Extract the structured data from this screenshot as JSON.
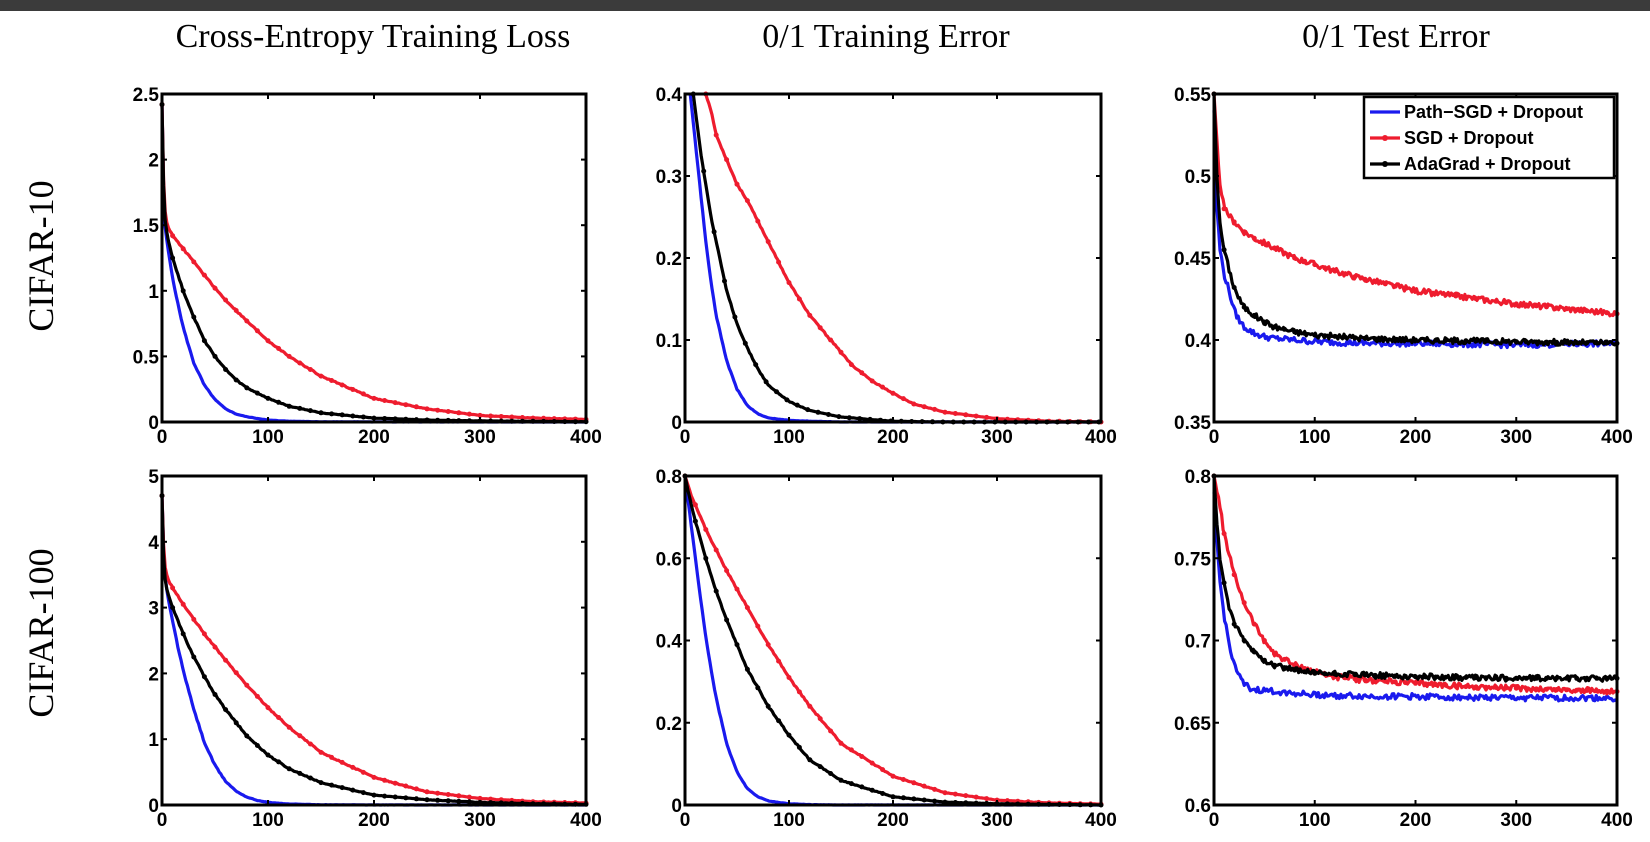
{
  "figure": {
    "col_titles": [
      "Cross-Entropy Training Loss",
      "0/1 Training Error",
      "0/1 Test Error"
    ],
    "row_labels": [
      "CIFAR-10",
      "CIFAR-100"
    ]
  },
  "legend": {
    "items": [
      {
        "label": "Path−SGD + Dropout",
        "color": "#1a1aee",
        "marker": "none"
      },
      {
        "label": "SGD + Dropout",
        "color": "#ee1c2e",
        "marker": "dot"
      },
      {
        "label": "AdaGrad + Dropout",
        "color": "#000000",
        "marker": "dot"
      }
    ]
  },
  "colors": {
    "path_sgd": "#1a1aee",
    "sgd": "#ee1c2e",
    "adagrad": "#000000"
  },
  "chart_data": [
    {
      "type": "line",
      "row": "CIFAR-10",
      "title": "Cross-Entropy Training Loss",
      "xlim": [
        0,
        400
      ],
      "ylim": [
        0,
        2.5
      ],
      "xticks": [
        0,
        100,
        200,
        300,
        400
      ],
      "xtick_labels": [
        "0",
        "100",
        "200",
        "300",
        "400"
      ],
      "yticks": [
        0,
        0.5,
        1,
        1.5,
        2,
        2.5
      ],
      "ytick_labels": [
        "0",
        "0.5",
        "1",
        "1.5",
        "2",
        "2.5"
      ],
      "series": [
        {
          "name": "Path−SGD + Dropout",
          "x": [
            0,
            2,
            5,
            10,
            15,
            20,
            30,
            40,
            50,
            60,
            70,
            80,
            100,
            120,
            150,
            200,
            300,
            400
          ],
          "y": [
            2.42,
            1.55,
            1.35,
            1.1,
            0.9,
            0.72,
            0.45,
            0.28,
            0.17,
            0.1,
            0.06,
            0.04,
            0.015,
            0.006,
            0.002,
            0.001,
            0,
            0
          ]
        },
        {
          "name": "SGD + Dropout",
          "x": [
            0,
            2,
            5,
            10,
            20,
            30,
            40,
            50,
            60,
            80,
            100,
            120,
            150,
            200,
            250,
            300,
            350,
            400
          ],
          "y": [
            2.42,
            1.65,
            1.5,
            1.42,
            1.32,
            1.22,
            1.12,
            1.02,
            0.93,
            0.77,
            0.62,
            0.5,
            0.35,
            0.18,
            0.1,
            0.05,
            0.03,
            0.02
          ]
        },
        {
          "name": "AdaGrad + Dropout",
          "x": [
            0,
            2,
            5,
            10,
            20,
            30,
            40,
            50,
            60,
            70,
            80,
            100,
            120,
            150,
            200,
            250,
            300,
            400
          ],
          "y": [
            2.42,
            1.6,
            1.42,
            1.25,
            1.0,
            0.8,
            0.62,
            0.5,
            0.4,
            0.32,
            0.26,
            0.18,
            0.12,
            0.07,
            0.03,
            0.015,
            0.008,
            0.002
          ]
        }
      ]
    },
    {
      "type": "line",
      "row": "CIFAR-10",
      "title": "0/1 Training Error",
      "xlim": [
        0,
        400
      ],
      "ylim": [
        0,
        0.4
      ],
      "xticks": [
        0,
        100,
        200,
        300,
        400
      ],
      "xtick_labels": [
        "0",
        "100",
        "200",
        "300",
        "400"
      ],
      "yticks": [
        0,
        0.1,
        0.2,
        0.3,
        0.4
      ],
      "ytick_labels": [
        "0",
        "0.1",
        "0.2",
        "0.3",
        "0.4"
      ],
      "series": [
        {
          "name": "Path−SGD + Dropout",
          "x": [
            5,
            10,
            15,
            20,
            25,
            30,
            40,
            50,
            60,
            70,
            80,
            100,
            120,
            150,
            200,
            400
          ],
          "y": [
            0.4,
            0.34,
            0.28,
            0.22,
            0.17,
            0.13,
            0.075,
            0.04,
            0.02,
            0.01,
            0.005,
            0.002,
            0.001,
            0,
            0,
            0
          ]
        },
        {
          "name": "SGD + Dropout",
          "x": [
            20,
            25,
            30,
            40,
            50,
            60,
            80,
            100,
            120,
            140,
            160,
            180,
            200,
            220,
            250,
            300,
            350,
            400
          ],
          "y": [
            0.4,
            0.38,
            0.35,
            0.32,
            0.29,
            0.27,
            0.22,
            0.17,
            0.13,
            0.1,
            0.07,
            0.05,
            0.035,
            0.022,
            0.012,
            0.004,
            0.001,
            0
          ]
        },
        {
          "name": "AdaGrad + Dropout",
          "x": [
            8,
            10,
            15,
            20,
            25,
            30,
            40,
            50,
            60,
            70,
            80,
            100,
            120,
            150,
            200,
            250,
            300,
            400
          ],
          "y": [
            0.4,
            0.38,
            0.33,
            0.29,
            0.25,
            0.22,
            0.16,
            0.12,
            0.09,
            0.065,
            0.045,
            0.025,
            0.014,
            0.006,
            0.001,
            0,
            0,
            0
          ]
        }
      ]
    },
    {
      "type": "line",
      "row": "CIFAR-10",
      "title": "0/1 Test Error",
      "xlim": [
        0,
        400
      ],
      "ylim": [
        0.35,
        0.55
      ],
      "xticks": [
        0,
        100,
        200,
        300,
        400
      ],
      "xtick_labels": [
        "0",
        "100",
        "200",
        "300",
        "400"
      ],
      "yticks": [
        0.35,
        0.4,
        0.45,
        0.5,
        0.55
      ],
      "ytick_labels": [
        "0.35",
        "0.4",
        "0.45",
        "0.5",
        "0.55"
      ],
      "series": [
        {
          "name": "Path−SGD + Dropout",
          "x": [
            0,
            3,
            6,
            10,
            15,
            20,
            25,
            30,
            40,
            50,
            60,
            80,
            100,
            150,
            200,
            300,
            400
          ],
          "y": [
            0.54,
            0.48,
            0.455,
            0.44,
            0.43,
            0.418,
            0.412,
            0.408,
            0.404,
            0.402,
            0.401,
            0.4,
            0.399,
            0.398,
            0.398,
            0.397,
            0.398
          ]
        },
        {
          "name": "SGD + Dropout",
          "x": [
            0,
            5,
            10,
            20,
            30,
            40,
            60,
            80,
            100,
            120,
            150,
            200,
            250,
            300,
            350,
            400
          ],
          "y": [
            0.55,
            0.5,
            0.48,
            0.472,
            0.466,
            0.462,
            0.456,
            0.45,
            0.446,
            0.442,
            0.437,
            0.43,
            0.426,
            0.422,
            0.419,
            0.416
          ]
        },
        {
          "name": "AdaGrad + Dropout",
          "x": [
            0,
            3,
            6,
            10,
            15,
            20,
            25,
            30,
            40,
            50,
            60,
            80,
            100,
            150,
            200,
            300,
            400
          ],
          "y": [
            0.55,
            0.5,
            0.47,
            0.455,
            0.443,
            0.432,
            0.425,
            0.42,
            0.415,
            0.411,
            0.408,
            0.405,
            0.403,
            0.401,
            0.4,
            0.399,
            0.398
          ]
        }
      ]
    },
    {
      "type": "line",
      "row": "CIFAR-100",
      "title": "Cross-Entropy Training Loss",
      "xlim": [
        0,
        400
      ],
      "ylim": [
        0,
        5
      ],
      "xticks": [
        0,
        100,
        200,
        300,
        400
      ],
      "xtick_labels": [
        "0",
        "100",
        "200",
        "300",
        "400"
      ],
      "yticks": [
        0,
        1,
        2,
        3,
        4,
        5
      ],
      "ytick_labels": [
        "0",
        "1",
        "2",
        "3",
        "4",
        "5"
      ],
      "series": [
        {
          "name": "Path−SGD + Dropout",
          "x": [
            0,
            2,
            5,
            10,
            15,
            20,
            30,
            40,
            50,
            60,
            70,
            80,
            90,
            100,
            120,
            150,
            200,
            400
          ],
          "y": [
            4.7,
            3.6,
            3.2,
            2.8,
            2.4,
            2.05,
            1.45,
            0.95,
            0.6,
            0.36,
            0.21,
            0.12,
            0.07,
            0.04,
            0.015,
            0.004,
            0.001,
            0
          ]
        },
        {
          "name": "SGD + Dropout",
          "x": [
            0,
            2,
            5,
            10,
            20,
            30,
            40,
            50,
            60,
            80,
            100,
            120,
            150,
            200,
            250,
            300,
            350,
            400
          ],
          "y": [
            4.7,
            3.7,
            3.45,
            3.3,
            3.05,
            2.82,
            2.6,
            2.4,
            2.2,
            1.82,
            1.48,
            1.18,
            0.8,
            0.42,
            0.2,
            0.1,
            0.05,
            0.03
          ]
        },
        {
          "name": "AdaGrad + Dropout",
          "x": [
            0,
            2,
            5,
            10,
            20,
            30,
            40,
            50,
            60,
            80,
            100,
            120,
            150,
            200,
            250,
            300,
            350,
            400
          ],
          "y": [
            4.7,
            3.5,
            3.25,
            3.0,
            2.6,
            2.25,
            1.95,
            1.68,
            1.45,
            1.05,
            0.76,
            0.55,
            0.34,
            0.15,
            0.08,
            0.04,
            0.02,
            0.01
          ]
        }
      ]
    },
    {
      "type": "line",
      "row": "CIFAR-100",
      "title": "0/1 Training Error",
      "xlim": [
        0,
        400
      ],
      "ylim": [
        0,
        0.8
      ],
      "xticks": [
        0,
        100,
        200,
        300,
        400
      ],
      "xtick_labels": [
        "0",
        "100",
        "200",
        "300",
        "400"
      ],
      "yticks": [
        0,
        0.2,
        0.4,
        0.6,
        0.8
      ],
      "ytick_labels": [
        "0",
        "0.2",
        "0.4",
        "0.6",
        "0.8"
      ],
      "series": [
        {
          "name": "Path−SGD + Dropout",
          "x": [
            0,
            5,
            10,
            15,
            20,
            25,
            30,
            40,
            50,
            60,
            70,
            80,
            100,
            120,
            150,
            200,
            400
          ],
          "y": [
            0.8,
            0.7,
            0.6,
            0.5,
            0.41,
            0.33,
            0.26,
            0.15,
            0.08,
            0.04,
            0.02,
            0.01,
            0.003,
            0.001,
            0,
            0,
            0
          ]
        },
        {
          "name": "SGD + Dropout",
          "x": [
            0,
            5,
            10,
            20,
            30,
            40,
            60,
            80,
            100,
            120,
            150,
            200,
            250,
            300,
            350,
            400
          ],
          "y": [
            0.8,
            0.76,
            0.73,
            0.67,
            0.62,
            0.57,
            0.48,
            0.39,
            0.31,
            0.24,
            0.15,
            0.07,
            0.03,
            0.012,
            0.005,
            0.002
          ]
        },
        {
          "name": "AdaGrad + Dropout",
          "x": [
            0,
            5,
            10,
            20,
            30,
            40,
            50,
            60,
            80,
            100,
            120,
            150,
            200,
            250,
            300,
            400
          ],
          "y": [
            0.8,
            0.74,
            0.69,
            0.6,
            0.52,
            0.45,
            0.39,
            0.33,
            0.24,
            0.17,
            0.11,
            0.06,
            0.02,
            0.007,
            0.003,
            0
          ]
        }
      ]
    },
    {
      "type": "line",
      "row": "CIFAR-100",
      "title": "0/1 Test Error",
      "xlim": [
        0,
        400
      ],
      "ylim": [
        0.6,
        0.8
      ],
      "xticks": [
        0,
        100,
        200,
        300,
        400
      ],
      "xtick_labels": [
        "0",
        "100",
        "200",
        "300",
        "400"
      ],
      "yticks": [
        0.6,
        0.65,
        0.7,
        0.75,
        0.8
      ],
      "ytick_labels": [
        "0.6",
        "0.65",
        "0.7",
        "0.75",
        "0.8"
      ],
      "series": [
        {
          "name": "Path−SGD + Dropout",
          "x": [
            0,
            3,
            6,
            10,
            15,
            20,
            25,
            30,
            40,
            60,
            80,
            100,
            150,
            200,
            300,
            400
          ],
          "y": [
            0.79,
            0.76,
            0.735,
            0.715,
            0.698,
            0.686,
            0.678,
            0.673,
            0.67,
            0.669,
            0.668,
            0.667,
            0.666,
            0.666,
            0.665,
            0.665
          ]
        },
        {
          "name": "SGD + Dropout",
          "x": [
            0,
            5,
            10,
            20,
            30,
            40,
            50,
            60,
            80,
            100,
            120,
            150,
            200,
            250,
            300,
            350,
            400
          ],
          "y": [
            0.8,
            0.785,
            0.765,
            0.74,
            0.723,
            0.71,
            0.7,
            0.692,
            0.685,
            0.681,
            0.678,
            0.676,
            0.674,
            0.672,
            0.671,
            0.67,
            0.669
          ]
        },
        {
          "name": "AdaGrad + Dropout",
          "x": [
            0,
            3,
            6,
            10,
            15,
            20,
            30,
            40,
            50,
            60,
            80,
            100,
            150,
            200,
            300,
            400
          ],
          "y": [
            0.8,
            0.77,
            0.75,
            0.735,
            0.72,
            0.71,
            0.7,
            0.693,
            0.688,
            0.685,
            0.682,
            0.68,
            0.679,
            0.678,
            0.677,
            0.677
          ]
        }
      ]
    }
  ]
}
